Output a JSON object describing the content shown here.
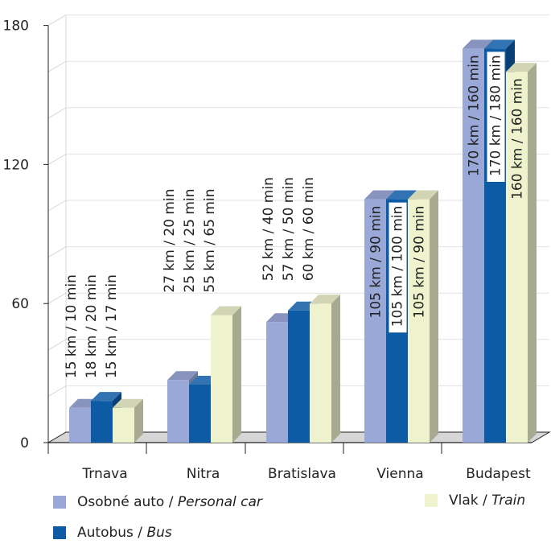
{
  "chart_data": {
    "type": "bar",
    "categories": [
      "Trnava",
      "Nitra",
      "Bratislava",
      "Vienna",
      "Budapest"
    ],
    "ylim": [
      0,
      180
    ],
    "yticks": [
      0,
      60,
      120,
      180
    ],
    "grid": true,
    "series": [
      {
        "name": "Osobné auto",
        "name_en": "Personal car",
        "color": "#9aa8d8",
        "values": [
          15,
          27,
          52,
          105,
          170
        ],
        "labels": [
          "15 km / 10 min",
          "27 km / 20 min",
          "52 km / 40 min",
          "105 km / 90 min",
          "170 km / 160 min"
        ]
      },
      {
        "name": "Autobus",
        "name_en": "Bus",
        "color": "#0d5aa5",
        "values": [
          18,
          25,
          57,
          105,
          170
        ],
        "labels": [
          "18 km / 20 min",
          "25 km / 25 min",
          "57 km / 50 min",
          "105 km / 100 min",
          "170 km / 180 min"
        ]
      },
      {
        "name": "Vlak",
        "name_en": "Train",
        "color": "#eef2cd",
        "values": [
          15,
          55,
          60,
          105,
          160
        ],
        "labels": [
          "15 km / 17 min",
          "55 km / 65 min",
          "60 km / 60 min",
          "105 km / 90 min",
          "160 km / 160 min"
        ]
      }
    ],
    "legend_position": "bottom"
  }
}
